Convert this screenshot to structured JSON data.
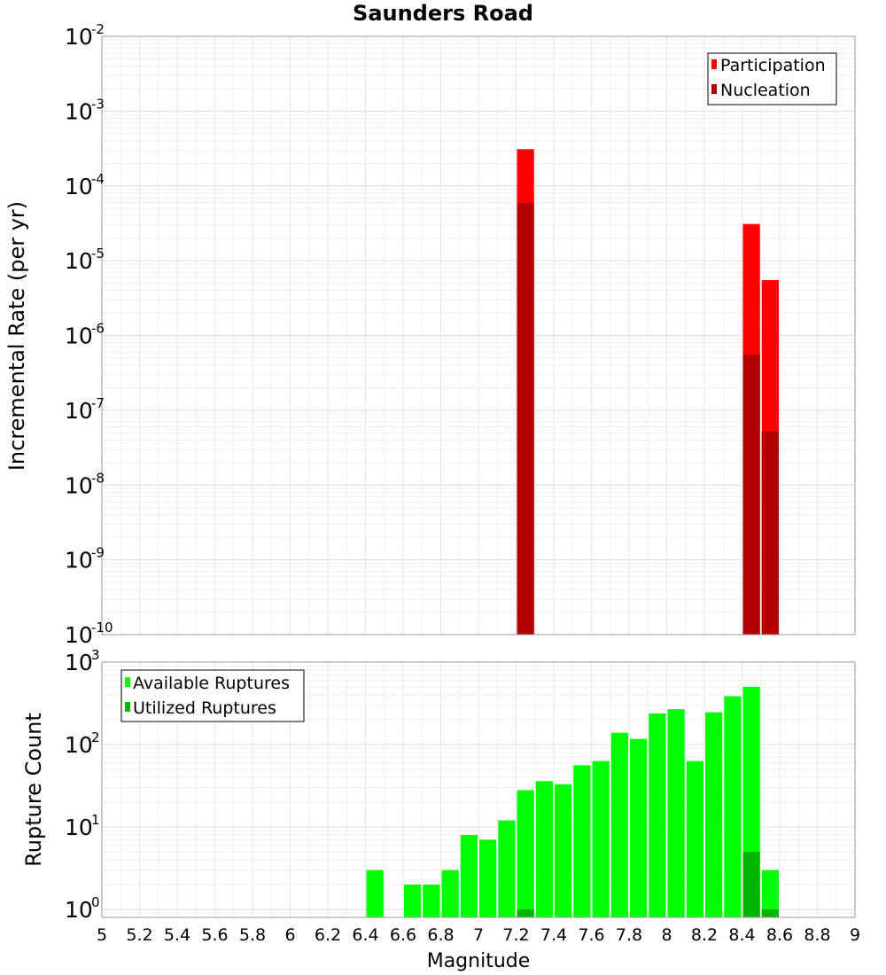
{
  "chart_data": [
    {
      "type": "bar",
      "title": "Saunders Road",
      "ylabel": "Incremental Rate (per yr)",
      "xlabel": "",
      "xlim": [
        5,
        9
      ],
      "ylim": [
        1e-10,
        0.01
      ],
      "yscale": "log",
      "ytick_exponents": [
        "-2",
        "-3",
        "-4",
        "-5",
        "-6",
        "-7",
        "-8",
        "-9",
        "-10"
      ],
      "ytick_base": "10",
      "grid": true,
      "legend_position": "top-right",
      "bin_width": 0.1,
      "series": [
        {
          "name": "Participation",
          "color": "#ff0000",
          "x": [
            7.25,
            8.45,
            8.55
          ],
          "values": [
            0.00031,
            3.1e-05,
            5.5e-06
          ]
        },
        {
          "name": "Nucleation",
          "color": "#b20000",
          "x": [
            7.25,
            8.45,
            8.55
          ],
          "values": [
            5.9e-05,
            5.6e-07,
            5.2e-08
          ]
        }
      ]
    },
    {
      "type": "bar",
      "ylabel": "Rupture Count",
      "xlabel": "Magnitude",
      "xlim": [
        5,
        9
      ],
      "ylim": [
        0.8,
        1000
      ],
      "yscale": "log",
      "ytick_exponents": [
        "3",
        "2",
        "1",
        "0"
      ],
      "ytick_base": "10",
      "grid": true,
      "legend_position": "top-left",
      "bin_width": 0.1,
      "xtick_labels": [
        "5",
        "5.2",
        "5.4",
        "5.6",
        "5.8",
        "6",
        "6.2",
        "6.4",
        "6.6",
        "6.8",
        "7",
        "7.2",
        "7.4",
        "7.6",
        "7.8",
        "8",
        "8.2",
        "8.4",
        "8.6",
        "8.8",
        "9"
      ],
      "series": [
        {
          "name": "Available Ruptures",
          "color": "#00ff00",
          "x": [
            6.45,
            6.65,
            6.75,
            6.85,
            6.95,
            7.05,
            7.15,
            7.25,
            7.35,
            7.45,
            7.55,
            7.65,
            7.75,
            7.85,
            7.95,
            8.05,
            8.15,
            8.25,
            8.35,
            8.45,
            8.55
          ],
          "values": [
            3,
            2,
            2,
            3,
            8,
            7,
            12,
            28,
            36,
            33,
            56,
            63,
            139,
            117,
            238,
            268,
            63,
            246,
            386,
            501,
            3
          ]
        },
        {
          "name": "Utilized Ruptures",
          "color": "#00b400",
          "x": [
            7.25,
            8.45,
            8.55
          ],
          "values": [
            1,
            5,
            1
          ]
        }
      ]
    }
  ]
}
